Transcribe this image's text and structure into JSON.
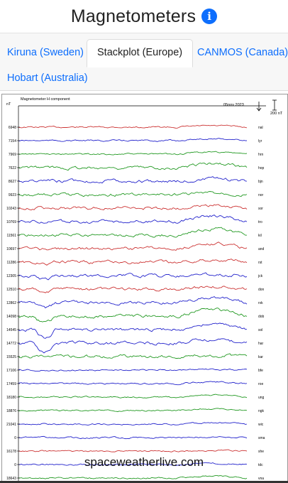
{
  "header": {
    "title": "Magnetometers",
    "info_icon": "info-icon",
    "info_color": "#0d6efd"
  },
  "tabs": [
    {
      "label": "Kiruna (Sweden)",
      "active": false
    },
    {
      "label": "Stackplot (Europe)",
      "active": true
    },
    {
      "label": "CANMOS (Canada)",
      "active": false
    },
    {
      "label": "Hobart (Australia)",
      "active": false
    }
  ],
  "plot": {
    "caption": "Magnetometer H component",
    "unit": "nT",
    "date_label": "05nov 2023",
    "scale_label": "200 nT",
    "watermark": "spaceweatherlive.com",
    "colors": {
      "red": "#cc3333",
      "blue": "#2222cc",
      "green": "#229922",
      "axis": "#000000"
    },
    "stations": [
      {
        "code": "nal",
        "value": "6948",
        "color": "red"
      },
      {
        "code": "lyr",
        "value": "7154",
        "color": "blue"
      },
      {
        "code": "hrn",
        "value": "7969",
        "color": "green"
      },
      {
        "code": "hop",
        "value": "7622",
        "color": "green"
      },
      {
        "code": "bjn",
        "value": "8627",
        "color": "blue"
      },
      {
        "code": "nor",
        "value": "9923",
        "color": "green"
      },
      {
        "code": "sor",
        "value": "10243",
        "color": "red"
      },
      {
        "code": "tro",
        "value": "10769",
        "color": "blue"
      },
      {
        "code": "kil",
        "value": "11561",
        "color": "green"
      },
      {
        "code": "and",
        "value": "10697",
        "color": "red"
      },
      {
        "code": "rst",
        "value": "11286",
        "color": "red"
      },
      {
        "code": "jck",
        "value": "12305",
        "color": "blue"
      },
      {
        "code": "don",
        "value": "12510",
        "color": "red"
      },
      {
        "code": "rvk",
        "value": "12862",
        "color": "blue"
      },
      {
        "code": "dob",
        "value": "14098",
        "color": "green"
      },
      {
        "code": "sol",
        "value": "14545",
        "color": "blue"
      },
      {
        "code": "har",
        "value": "14772",
        "color": "blue"
      },
      {
        "code": "kar",
        "value": "15525",
        "color": "green"
      },
      {
        "code": "bfe",
        "value": "17106",
        "color": "blue"
      },
      {
        "code": "roe",
        "value": "17459",
        "color": "blue"
      },
      {
        "code": "ung",
        "value": "18180",
        "color": "green"
      },
      {
        "code": "ngk",
        "value": "18876",
        "color": "green"
      },
      {
        "code": "wic",
        "value": "21041",
        "color": "blue"
      },
      {
        "code": "sma",
        "value": "0",
        "color": "blue"
      },
      {
        "code": "she",
        "value": "16178",
        "color": "red"
      },
      {
        "code": "tdc",
        "value": "0",
        "color": "blue"
      },
      {
        "code": "vna",
        "value": "18643",
        "color": "green"
      }
    ]
  }
}
